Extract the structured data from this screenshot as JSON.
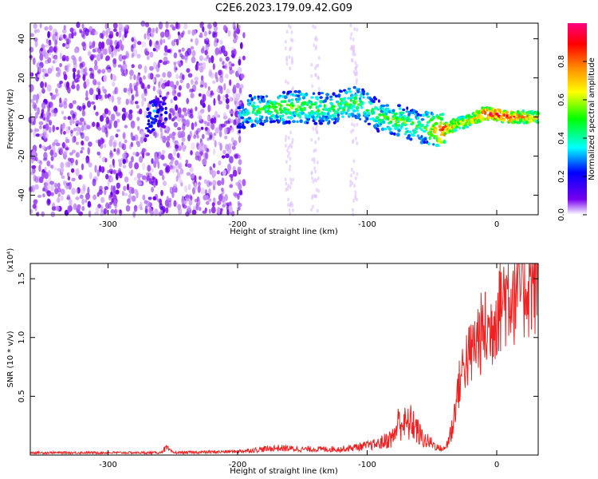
{
  "figure": {
    "title": "C2E6.2023.179.09.42.G09"
  },
  "chart_data": [
    {
      "type": "heatmap",
      "xlabel": "Height of straight line (km)",
      "ylabel": "Frequency (Hz)",
      "xlim": [
        -360,
        32
      ],
      "ylim": [
        -50,
        48
      ],
      "xticks": [
        -300,
        -200,
        -100,
        0
      ],
      "yticks": [
        -40,
        -20,
        0,
        20,
        40
      ],
      "colorbar": {
        "label": "Normalized spectral amplitude",
        "range": [
          0.0,
          1.0
        ],
        "ticks": [
          0.0,
          0.2,
          0.4,
          0.6,
          0.8
        ],
        "colormap": [
          "#ffffff",
          "#7700ee",
          "#0000ff",
          "#00ffff",
          "#00ff00",
          "#ffff00",
          "#ff8800",
          "#ff0000",
          "#ff0080"
        ]
      },
      "ridge": {
        "x": [
          -270,
          -265,
          -260,
          -200,
          -190,
          -170,
          -150,
          -130,
          -110,
          -100,
          -90,
          -80,
          -70,
          -60,
          -50,
          -45,
          -40,
          -35,
          -30,
          -20,
          -10,
          0,
          10,
          20,
          32
        ],
        "y": [
          -2,
          1,
          3,
          0,
          3,
          5,
          5,
          4,
          8,
          5,
          0,
          -1,
          -3,
          -5,
          -6,
          -7,
          -6,
          -5,
          -3,
          -2,
          2,
          1,
          0,
          0,
          0
        ],
        "value": [
          0.25,
          0.35,
          0.25,
          0.3,
          0.45,
          0.5,
          0.5,
          0.45,
          0.5,
          0.45,
          0.45,
          0.5,
          0.5,
          0.45,
          0.6,
          0.75,
          0.85,
          0.7,
          0.6,
          0.65,
          0.85,
          0.9,
          0.85,
          0.7,
          0.65
        ]
      },
      "background_noise": {
        "x_range": [
          -360,
          -195
        ],
        "value_range": [
          0.05,
          0.15
        ]
      }
    },
    {
      "type": "line",
      "xlabel": "Height of straight line (km)",
      "ylabel": "SNR (10 * v/v)",
      "y_multiplier": "(x10⁴)",
      "xlim": [
        -360,
        32
      ],
      "ylim": [
        0.0,
        1.63
      ],
      "xticks": [
        -300,
        -200,
        -100,
        0
      ],
      "yticks": [
        0.5,
        1.0,
        1.5
      ],
      "color": "#ee2222",
      "series": [
        {
          "x": [
            -360,
            -300,
            -260,
            -255,
            -250,
            -200,
            -170,
            -150,
            -120,
            -100,
            -90,
            -80,
            -75,
            -70,
            -65,
            -60,
            -55,
            -50,
            -45,
            -40,
            -35,
            -30,
            -25,
            -20,
            -15,
            -10,
            -5,
            0,
            5,
            10,
            15,
            20,
            25,
            32
          ],
          "y": [
            0.02,
            0.02,
            0.02,
            0.06,
            0.02,
            0.03,
            0.06,
            0.05,
            0.05,
            0.08,
            0.1,
            0.15,
            0.3,
            0.25,
            0.28,
            0.18,
            0.12,
            0.1,
            0.06,
            0.05,
            0.2,
            0.55,
            0.8,
            0.85,
            1.0,
            1.05,
            1.05,
            1.25,
            1.35,
            1.4,
            1.42,
            1.45,
            1.5,
            1.53
          ]
        }
      ]
    }
  ]
}
